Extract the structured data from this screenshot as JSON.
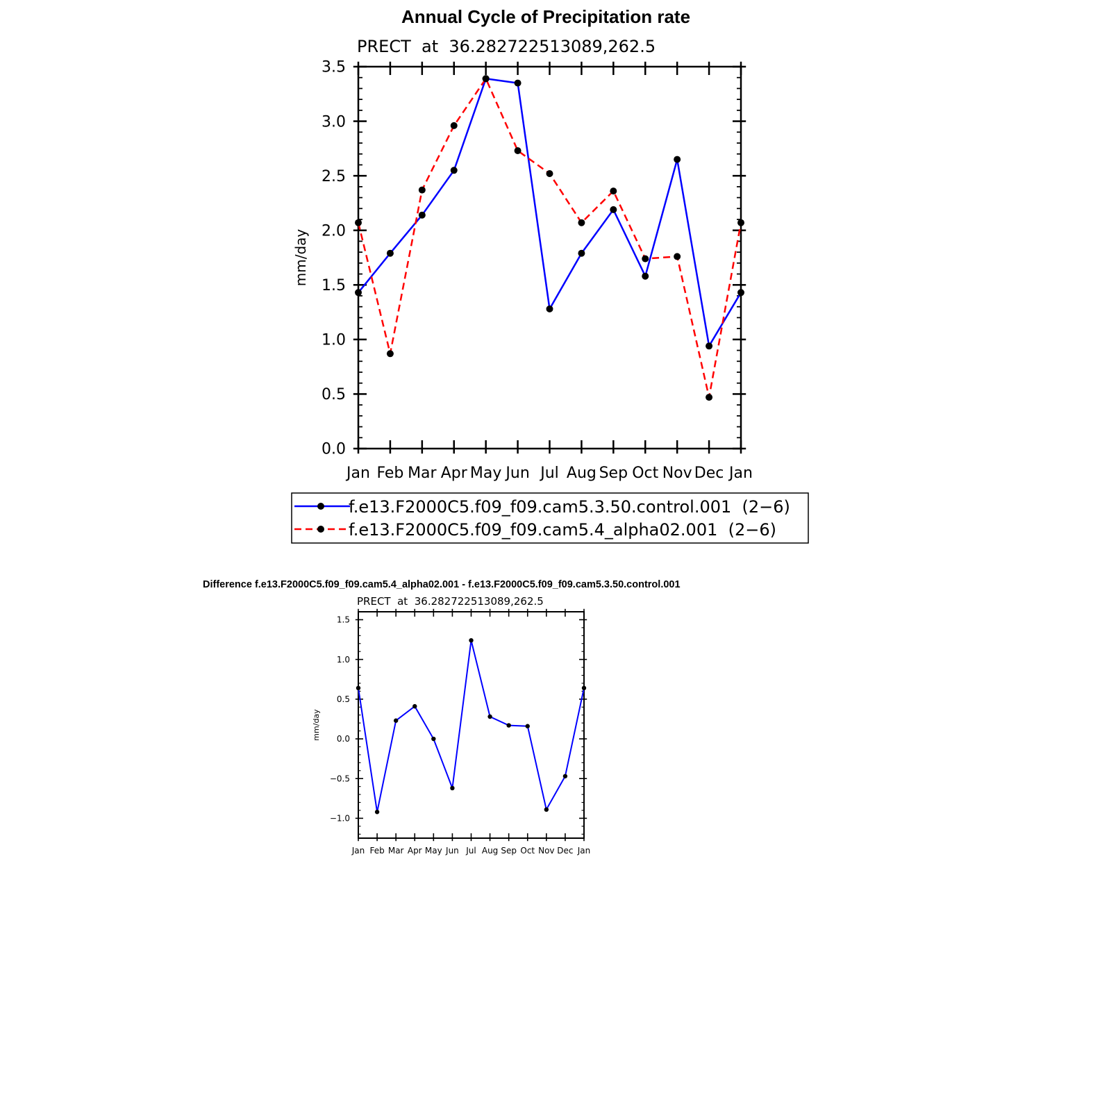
{
  "chart_data": [
    {
      "type": "line",
      "title": "Annual Cycle of Precipitation rate",
      "subtitle": "PRECT  at  36.282722513089,262.5",
      "xlabel": "",
      "ylabel": "mm/day",
      "categories": [
        "Jan",
        "Feb",
        "Mar",
        "Apr",
        "May",
        "Jun",
        "Jul",
        "Aug",
        "Sep",
        "Oct",
        "Nov",
        "Dec",
        "Jan"
      ],
      "yticks": [
        "0.0",
        "0.5",
        "1.0",
        "1.5",
        "2.0",
        "2.5",
        "3.0",
        "3.5"
      ],
      "ylim": [
        0,
        3.5
      ],
      "grid": false,
      "legend_position": "bottom",
      "series": [
        {
          "name": "f.e13.F2000C5.f09_f09.cam5.3.50.control.001  (2−6)",
          "color": "#0000ff",
          "style": "solid",
          "values": [
            1.43,
            1.79,
            2.14,
            2.55,
            3.39,
            3.35,
            1.28,
            1.79,
            2.19,
            1.58,
            2.65,
            0.94,
            1.43
          ]
        },
        {
          "name": "f.e13.F2000C5.f09_f09.cam5.4_alpha02.001  (2−6)",
          "color": "#ff0000",
          "style": "dashed",
          "values": [
            2.07,
            0.87,
            2.37,
            2.96,
            3.39,
            2.73,
            2.52,
            2.07,
            2.36,
            1.74,
            1.76,
            0.47,
            2.07
          ]
        }
      ]
    },
    {
      "type": "line",
      "title": "Difference f.e13.F2000C5.f09_f09.cam5.4_alpha02.001 - f.e13.F2000C5.f09_f09.cam5.3.50.control.001",
      "subtitle": "PRECT  at  36.282722513089,262.5",
      "xlabel": "",
      "ylabel": "mm/day",
      "categories": [
        "Jan",
        "Feb",
        "Mar",
        "Apr",
        "May",
        "Jun",
        "Jul",
        "Aug",
        "Sep",
        "Oct",
        "Nov",
        "Dec",
        "Jan"
      ],
      "yticks": [
        "−1.0",
        "−0.5",
        "0.0",
        "0.5",
        "1.0",
        "1.5"
      ],
      "ylim": [
        -1.25,
        1.6
      ],
      "grid": false,
      "series": [
        {
          "color": "#0000ff",
          "style": "solid",
          "values": [
            0.64,
            -0.92,
            0.23,
            0.41,
            0.0,
            -0.62,
            1.24,
            0.28,
            0.17,
            0.16,
            -0.89,
            -0.47,
            0.64
          ]
        }
      ]
    }
  ]
}
